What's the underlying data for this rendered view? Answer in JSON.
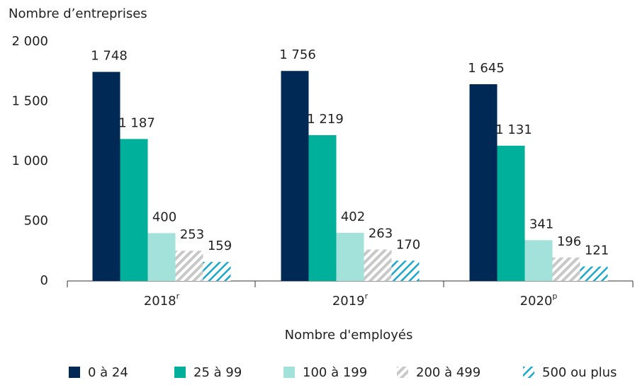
{
  "chart_data": {
    "type": "bar",
    "y_axis_label": "Nombre d’entreprises",
    "x_axis_label": "Nombre d'employés",
    "categories": [
      "2018",
      "2019",
      "2020"
    ],
    "category_notes": [
      "r",
      "r",
      "p"
    ],
    "series": [
      {
        "name": "0 à 24",
        "color": "#002a55",
        "pattern": "solid",
        "values": [
          1748,
          1756,
          1645
        ],
        "value_labels": [
          "1 748",
          "1 756",
          "1 645"
        ]
      },
      {
        "name": "25 à 99",
        "color": "#00b09b",
        "pattern": "solid",
        "values": [
          1187,
          1219,
          1131
        ],
        "value_labels": [
          "1 187",
          "1 219",
          "1 131"
        ]
      },
      {
        "name": "100 à 199",
        "color": "#a3e2da",
        "pattern": "solid",
        "values": [
          400,
          402,
          341
        ]
      },
      {
        "name": "200 à 499",
        "color": "#c8c8c8",
        "pattern": "hatch",
        "values": [
          253,
          263,
          196
        ]
      },
      {
        "name": "500 ou plus",
        "color": "#1aa8cc",
        "pattern": "hatch",
        "values": [
          159,
          170,
          121
        ]
      }
    ],
    "ylim": [
      0,
      2000
    ],
    "yticks": [
      0,
      500,
      {
        "value": 1000,
        "label": "1 000"
      },
      {
        "value": 1500,
        "label": "1 500"
      },
      {
        "value": 2000,
        "label": "2 000"
      }
    ],
    "grid": false,
    "legend": "bottom"
  }
}
